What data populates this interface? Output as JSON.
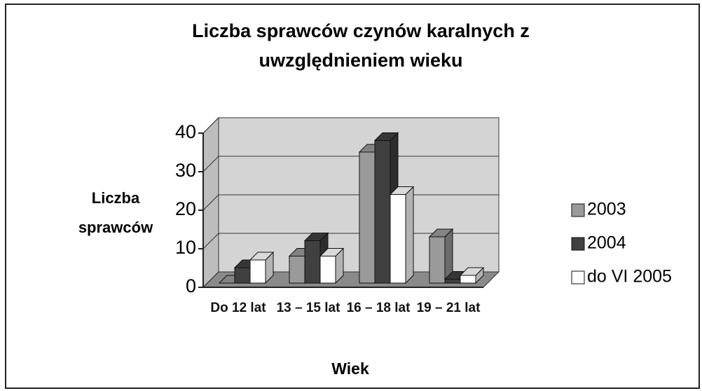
{
  "chart_data": {
    "type": "bar3d",
    "title": [
      "Liczba sprawców czynów karalnych z",
      "uwzględnieniem wieku"
    ],
    "y_label": [
      "Liczba",
      "sprawców"
    ],
    "x_label": "Wiek",
    "categories": [
      "Do 12 lat",
      "13 – 15 lat",
      "16 – 18 lat",
      "19 – 21 lat"
    ],
    "series": [
      {
        "name": "2003",
        "color": "#9a9a9a",
        "values": [
          0,
          7,
          34,
          12
        ]
      },
      {
        "name": "2004",
        "color": "#404040",
        "values": [
          4,
          11,
          37,
          1
        ]
      },
      {
        "name": "do VI 2005",
        "color": "#ffffff",
        "values": [
          6,
          7,
          23,
          2
        ]
      }
    ],
    "ylim": [
      0,
      40
    ],
    "yticks": [
      0,
      10,
      20,
      30,
      40
    ],
    "grid": true,
    "legend": "right"
  }
}
